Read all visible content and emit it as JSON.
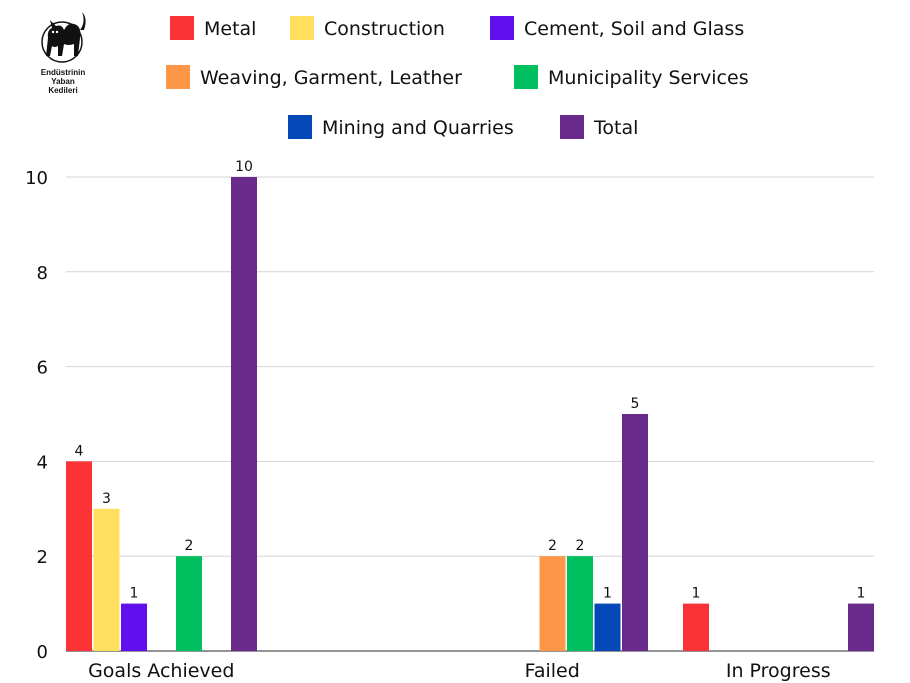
{
  "logo": {
    "line1": "Endüstrinin",
    "line2": "Yaban",
    "line3": "Kedileri"
  },
  "chart_data": {
    "type": "bar",
    "categories": [
      "Goals Achieved",
      "Failed",
      "In Progress"
    ],
    "series": [
      {
        "name": "Metal",
        "color": "#fb3337",
        "values": [
          4,
          null,
          1
        ]
      },
      {
        "name": "Construction",
        "color": "#ffdf5d",
        "values": [
          3,
          null,
          null
        ]
      },
      {
        "name": "Cement, Soil and Glass",
        "color": "#6010ec",
        "values": [
          1,
          null,
          null
        ]
      },
      {
        "name": "Weaving, Garment, Leather",
        "color": "#fd9747",
        "values": [
          null,
          2,
          null
        ]
      },
      {
        "name": "Municipality Services",
        "color": "#00bf5f",
        "values": [
          2,
          2,
          null
        ]
      },
      {
        "name": "Mining and Quarries",
        "color": "#0548b8",
        "values": [
          null,
          1,
          null
        ]
      },
      {
        "name": "Total",
        "color": "#6a2a8c",
        "values": [
          10,
          5,
          1
        ]
      }
    ],
    "yticks": [
      "0",
      "2",
      "4",
      "6",
      "8",
      "10"
    ],
    "ylim": [
      0,
      10
    ],
    "grid": true,
    "legend": "top",
    "data_labels": true
  }
}
